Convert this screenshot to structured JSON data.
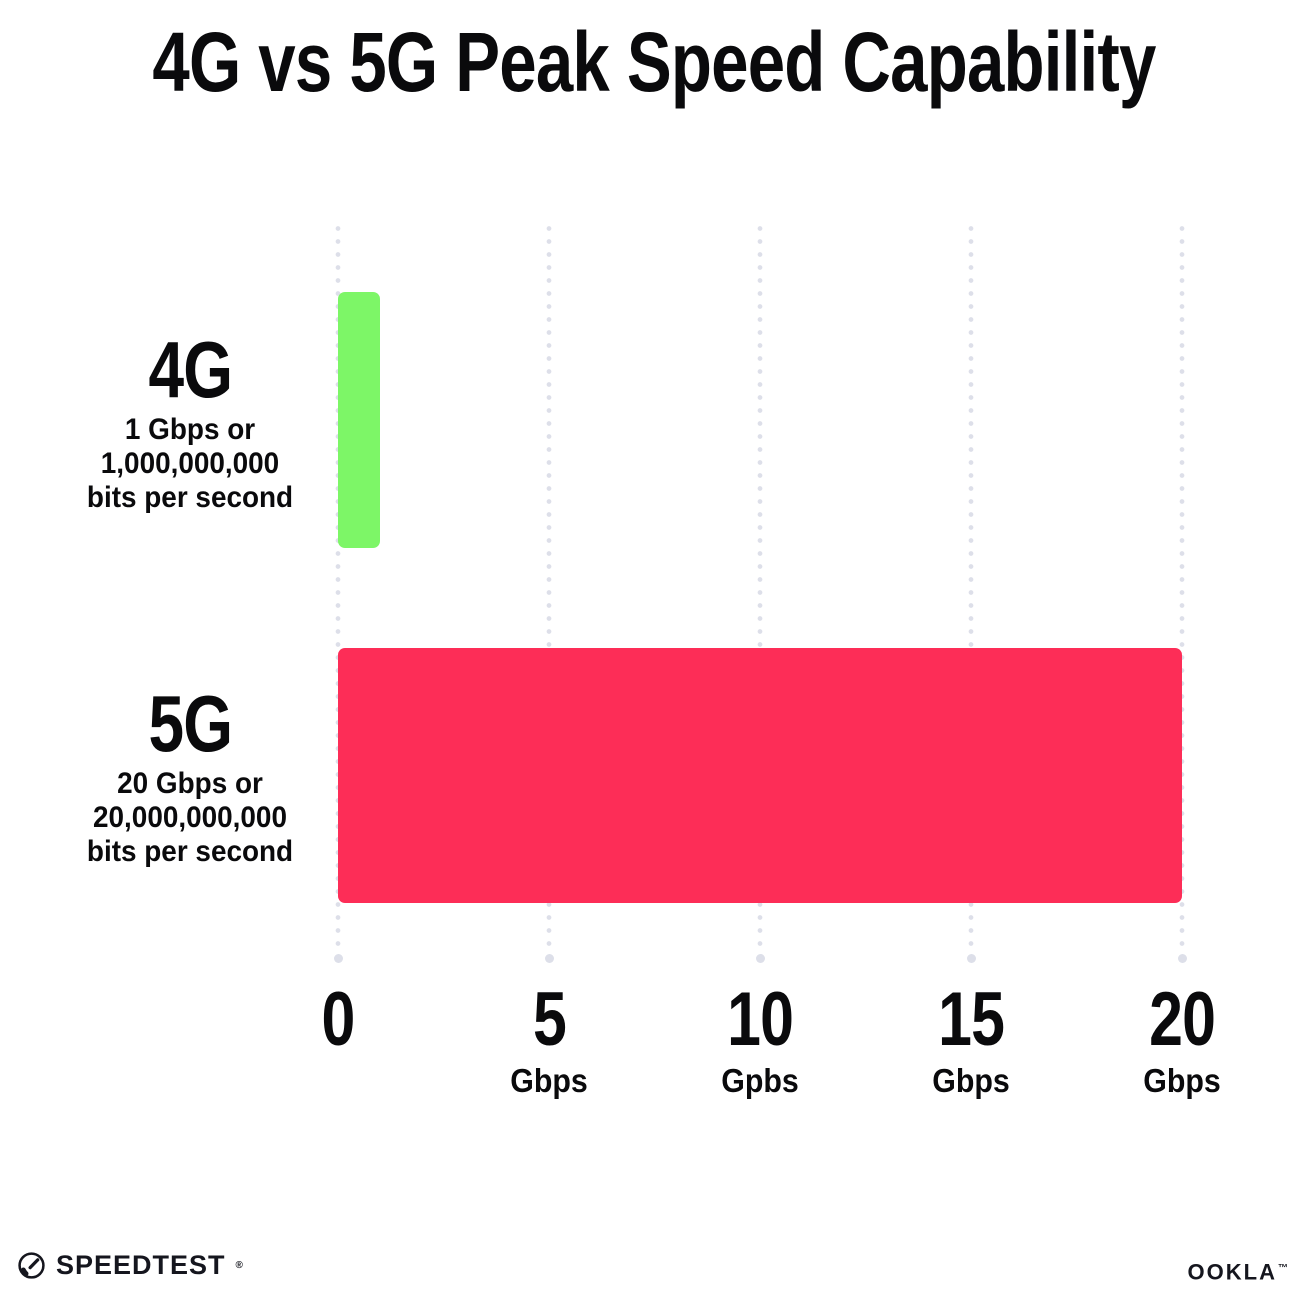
{
  "chart_data": {
    "type": "bar",
    "orientation": "horizontal",
    "title": "4G vs 5G Peak Speed Capability",
    "categories": [
      "4G",
      "5G"
    ],
    "values": [
      1,
      20
    ],
    "unit": "Gbps",
    "bar_colors": [
      "#7DF667",
      "#FD2D57"
    ],
    "category_descriptions": [
      [
        "1 Gbps or",
        "1,000,000,000",
        "bits per second"
      ],
      [
        "20 Gbps or",
        "20,000,000,000",
        "bits per second"
      ]
    ],
    "x_axis": {
      "min": 0,
      "max": 20,
      "ticks": [
        {
          "value": 0,
          "label": "0",
          "unit": ""
        },
        {
          "value": 5,
          "label": "5",
          "unit": "Gbps"
        },
        {
          "value": 10,
          "label": "10",
          "unit": "Gpbs"
        },
        {
          "value": 15,
          "label": "15",
          "unit": "Gbps"
        },
        {
          "value": 20,
          "label": "20",
          "unit": "Gbps"
        }
      ]
    },
    "grid": "dotted-vertical",
    "legend": "none"
  },
  "footer": {
    "speedtest_label": "SPEEDTEST",
    "speedtest_mark": "®",
    "ookla_label": "OOKLA",
    "ookla_mark": "™",
    "logo_color": "#15161e"
  }
}
